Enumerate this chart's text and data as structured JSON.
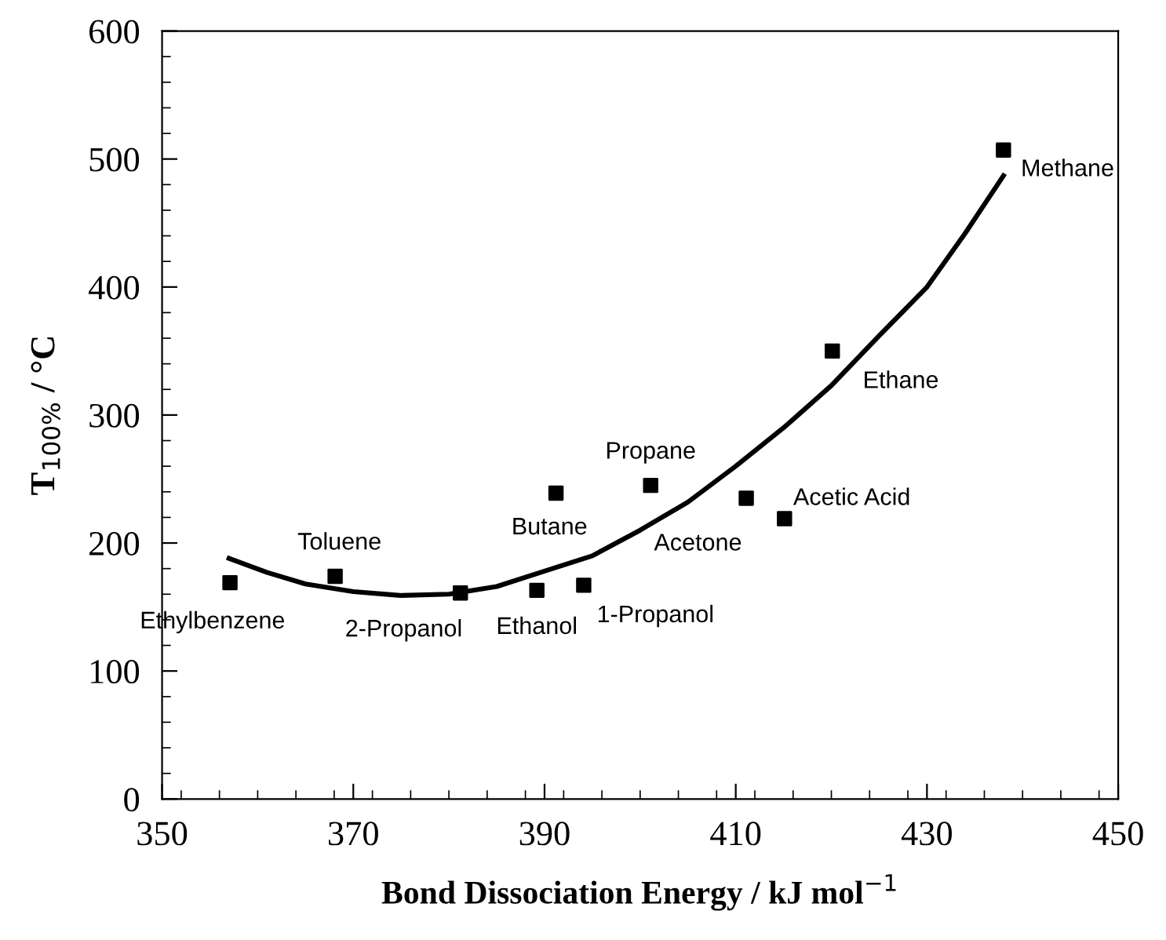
{
  "chart_data": {
    "type": "scatter",
    "xlabel": "Bond Dissociation Energy / kJ mol$^{−1}$",
    "ylabel": "T$_{100%}$ / °C",
    "xlim": [
      350,
      450
    ],
    "xticks": [
      350,
      370,
      390,
      410,
      430,
      450
    ],
    "ylim": [
      0,
      600
    ],
    "yticks": [
      0,
      100,
      200,
      300,
      400,
      500,
      600
    ],
    "grid": false,
    "legend": false,
    "marker": "square",
    "series": [
      {
        "color": "#000000",
        "x": [
          357.1,
          368.1,
          381.2,
          389.2,
          391.2,
          394.1,
          401.1,
          411.1,
          415.1,
          420.1,
          438.0
        ],
        "values": [
          169,
          174,
          161,
          163,
          239,
          167,
          245,
          235,
          219,
          350,
          507
        ]
      },
      {
        "type": "line",
        "color": "#000000",
        "marker": "none",
        "line_style": "solid",
        "x": [
          357,
          361,
          365,
          370,
          375,
          380,
          385,
          390,
          395,
          400,
          405,
          410,
          415,
          420,
          425,
          430,
          434,
          438
        ],
        "values": [
          188,
          177,
          168,
          162,
          159,
          160,
          166,
          178,
          190,
          210,
          232,
          260,
          290,
          323,
          362,
          400,
          442,
          487
        ]
      }
    ],
    "annotations": [
      {
        "text": "Ethylbenzene",
        "x": 357.1,
        "y": 169
      },
      {
        "text": "Toluene",
        "x": 368.1,
        "y": 174
      },
      {
        "text": "2-Propanol",
        "x": 381.2,
        "y": 161
      },
      {
        "text": "Ethanol",
        "x": 389.2,
        "y": 163
      },
      {
        "text": "Butane",
        "x": 391.2,
        "y": 239
      },
      {
        "text": "1-Propanol",
        "x": 394.1,
        "y": 167
      },
      {
        "text": "Propane",
        "x": 401.1,
        "y": 245
      },
      {
        "text": "Acetone",
        "x": 411.1,
        "y": 235
      },
      {
        "text": "Acetic Acid",
        "x": 415.1,
        "y": 219
      },
      {
        "text": "Ethane",
        "x": 420.1,
        "y": 350
      },
      {
        "text": "Methane",
        "x": 438.0,
        "y": 507
      }
    ]
  }
}
